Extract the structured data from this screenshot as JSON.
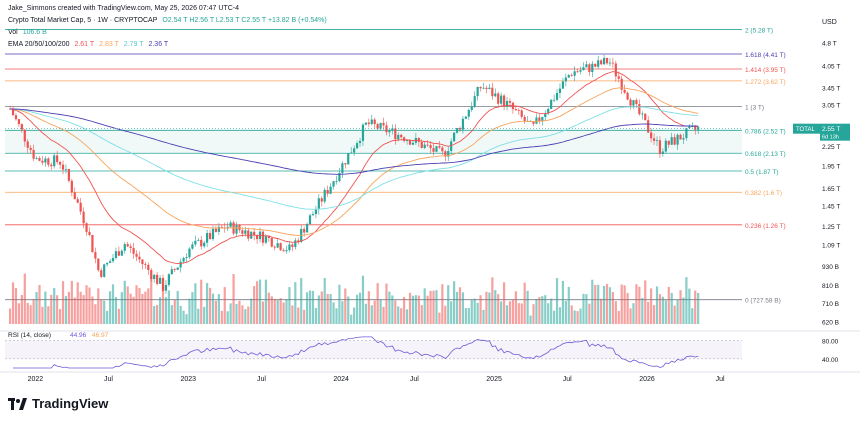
{
  "header": {
    "author_line": "Jake_Simmons created with TradingView.com, May 25, 2026 07:47 UTC-4",
    "symbol": "Crypto Total Market Cap, 5 · 1W · CRYPTOCAP",
    "ohlc": "O2.54 T H2.56 T L2.53 T C2.55 T +13.82 B (+0.54%)",
    "vol_label": "Vol",
    "vol_value": "106.6 B",
    "ema_label": "EMA 20/50/100/200",
    "ema_values": [
      "2.61 T",
      "2.83 T",
      "2.79 T",
      "2.36 T"
    ]
  },
  "colors": {
    "up": "#26a69a",
    "down": "#ef5350",
    "ema20": "#ef5350",
    "ema50": "#f7a45b",
    "ema100": "#7fe0e6",
    "ema200": "#4a3fb0",
    "rsi": "#6e5bd6",
    "fib_band": "#26a69a"
  },
  "currency": "USD",
  "footer_brand": "TradingView",
  "chart_data": {
    "type": "candlestick",
    "x_ticks": [
      "2022",
      "Jul",
      "2023",
      "Jul",
      "2024",
      "Jul",
      "2025",
      "Jul",
      "2026",
      "Jul"
    ],
    "y_ticks": [
      "4.8 T",
      "4.05 T",
      "3.45 T",
      "3.05 T",
      "2.25 T",
      "1.95 T",
      "1.65 T",
      "1.45 T",
      "1.25 T",
      "1.09 T",
      "930 B",
      "810 B",
      "710 B",
      "620 B"
    ],
    "fib_levels": [
      {
        "label": "2 (5.28 T)",
        "value": 5.28,
        "color": "#26a69a"
      },
      {
        "label": "1.618 (4.41 T)",
        "value": 4.41,
        "color": "#4a3fb0"
      },
      {
        "label": "1.414 (3.95 T)",
        "value": 3.95,
        "color": "#ef5350"
      },
      {
        "label": "1.272 (3.62 T)",
        "value": 3.62,
        "color": "#f7a45b"
      },
      {
        "label": "1 (3 T)",
        "value": 3.0,
        "color": "#787b86"
      },
      {
        "label": "0.786 (2.52 T)",
        "value": 2.52,
        "color": "#26a69a"
      },
      {
        "label": "0.618 (2.13 T)",
        "value": 2.13,
        "color": "#26a69a"
      },
      {
        "label": "0.5 (1.87 T)",
        "value": 1.87,
        "color": "#26a69a"
      },
      {
        "label": "0.382 (1.6 T)",
        "value": 1.6,
        "color": "#f7a45b"
      },
      {
        "label": "0.236 (1.26 T)",
        "value": 1.26,
        "color": "#ef5350"
      },
      {
        "label": "0 (727.58 B)",
        "value": 0.72758,
        "color": "#787b86"
      }
    ],
    "last_price": {
      "label": "TOTAL",
      "value": "2.55 T",
      "countdown": "6d 13h"
    },
    "price_path": [
      [
        "2021-11",
        2.95
      ],
      [
        "2022-01",
        2.05
      ],
      [
        "2022-03",
        2.0
      ],
      [
        "2022-05",
        1.25
      ],
      [
        "2022-06",
        0.88
      ],
      [
        "2022-08",
        1.1
      ],
      [
        "2022-11",
        0.8
      ],
      [
        "2023-01",
        1.05
      ],
      [
        "2023-04",
        1.25
      ],
      [
        "2023-07",
        1.15
      ],
      [
        "2023-09",
        1.05
      ],
      [
        "2023-12",
        1.65
      ],
      [
        "2024-03",
        2.65
      ],
      [
        "2024-06",
        2.4
      ],
      [
        "2024-09",
        2.1
      ],
      [
        "2024-12",
        3.5
      ],
      [
        "2025-02",
        3.05
      ],
      [
        "2025-04",
        2.55
      ],
      [
        "2025-07",
        3.85
      ],
      [
        "2025-09",
        4.05
      ],
      [
        "2025-10",
        4.2
      ],
      [
        "2025-12",
        3.0
      ],
      [
        "2026-02",
        2.2
      ],
      [
        "2026-04",
        2.45
      ],
      [
        "2026-05",
        2.55
      ]
    ],
    "rsi": {
      "label": "RSI (14, close)",
      "value": "44.96",
      "ma_value": "46.97",
      "levels": [
        "80.00",
        "40.00"
      ]
    }
  }
}
